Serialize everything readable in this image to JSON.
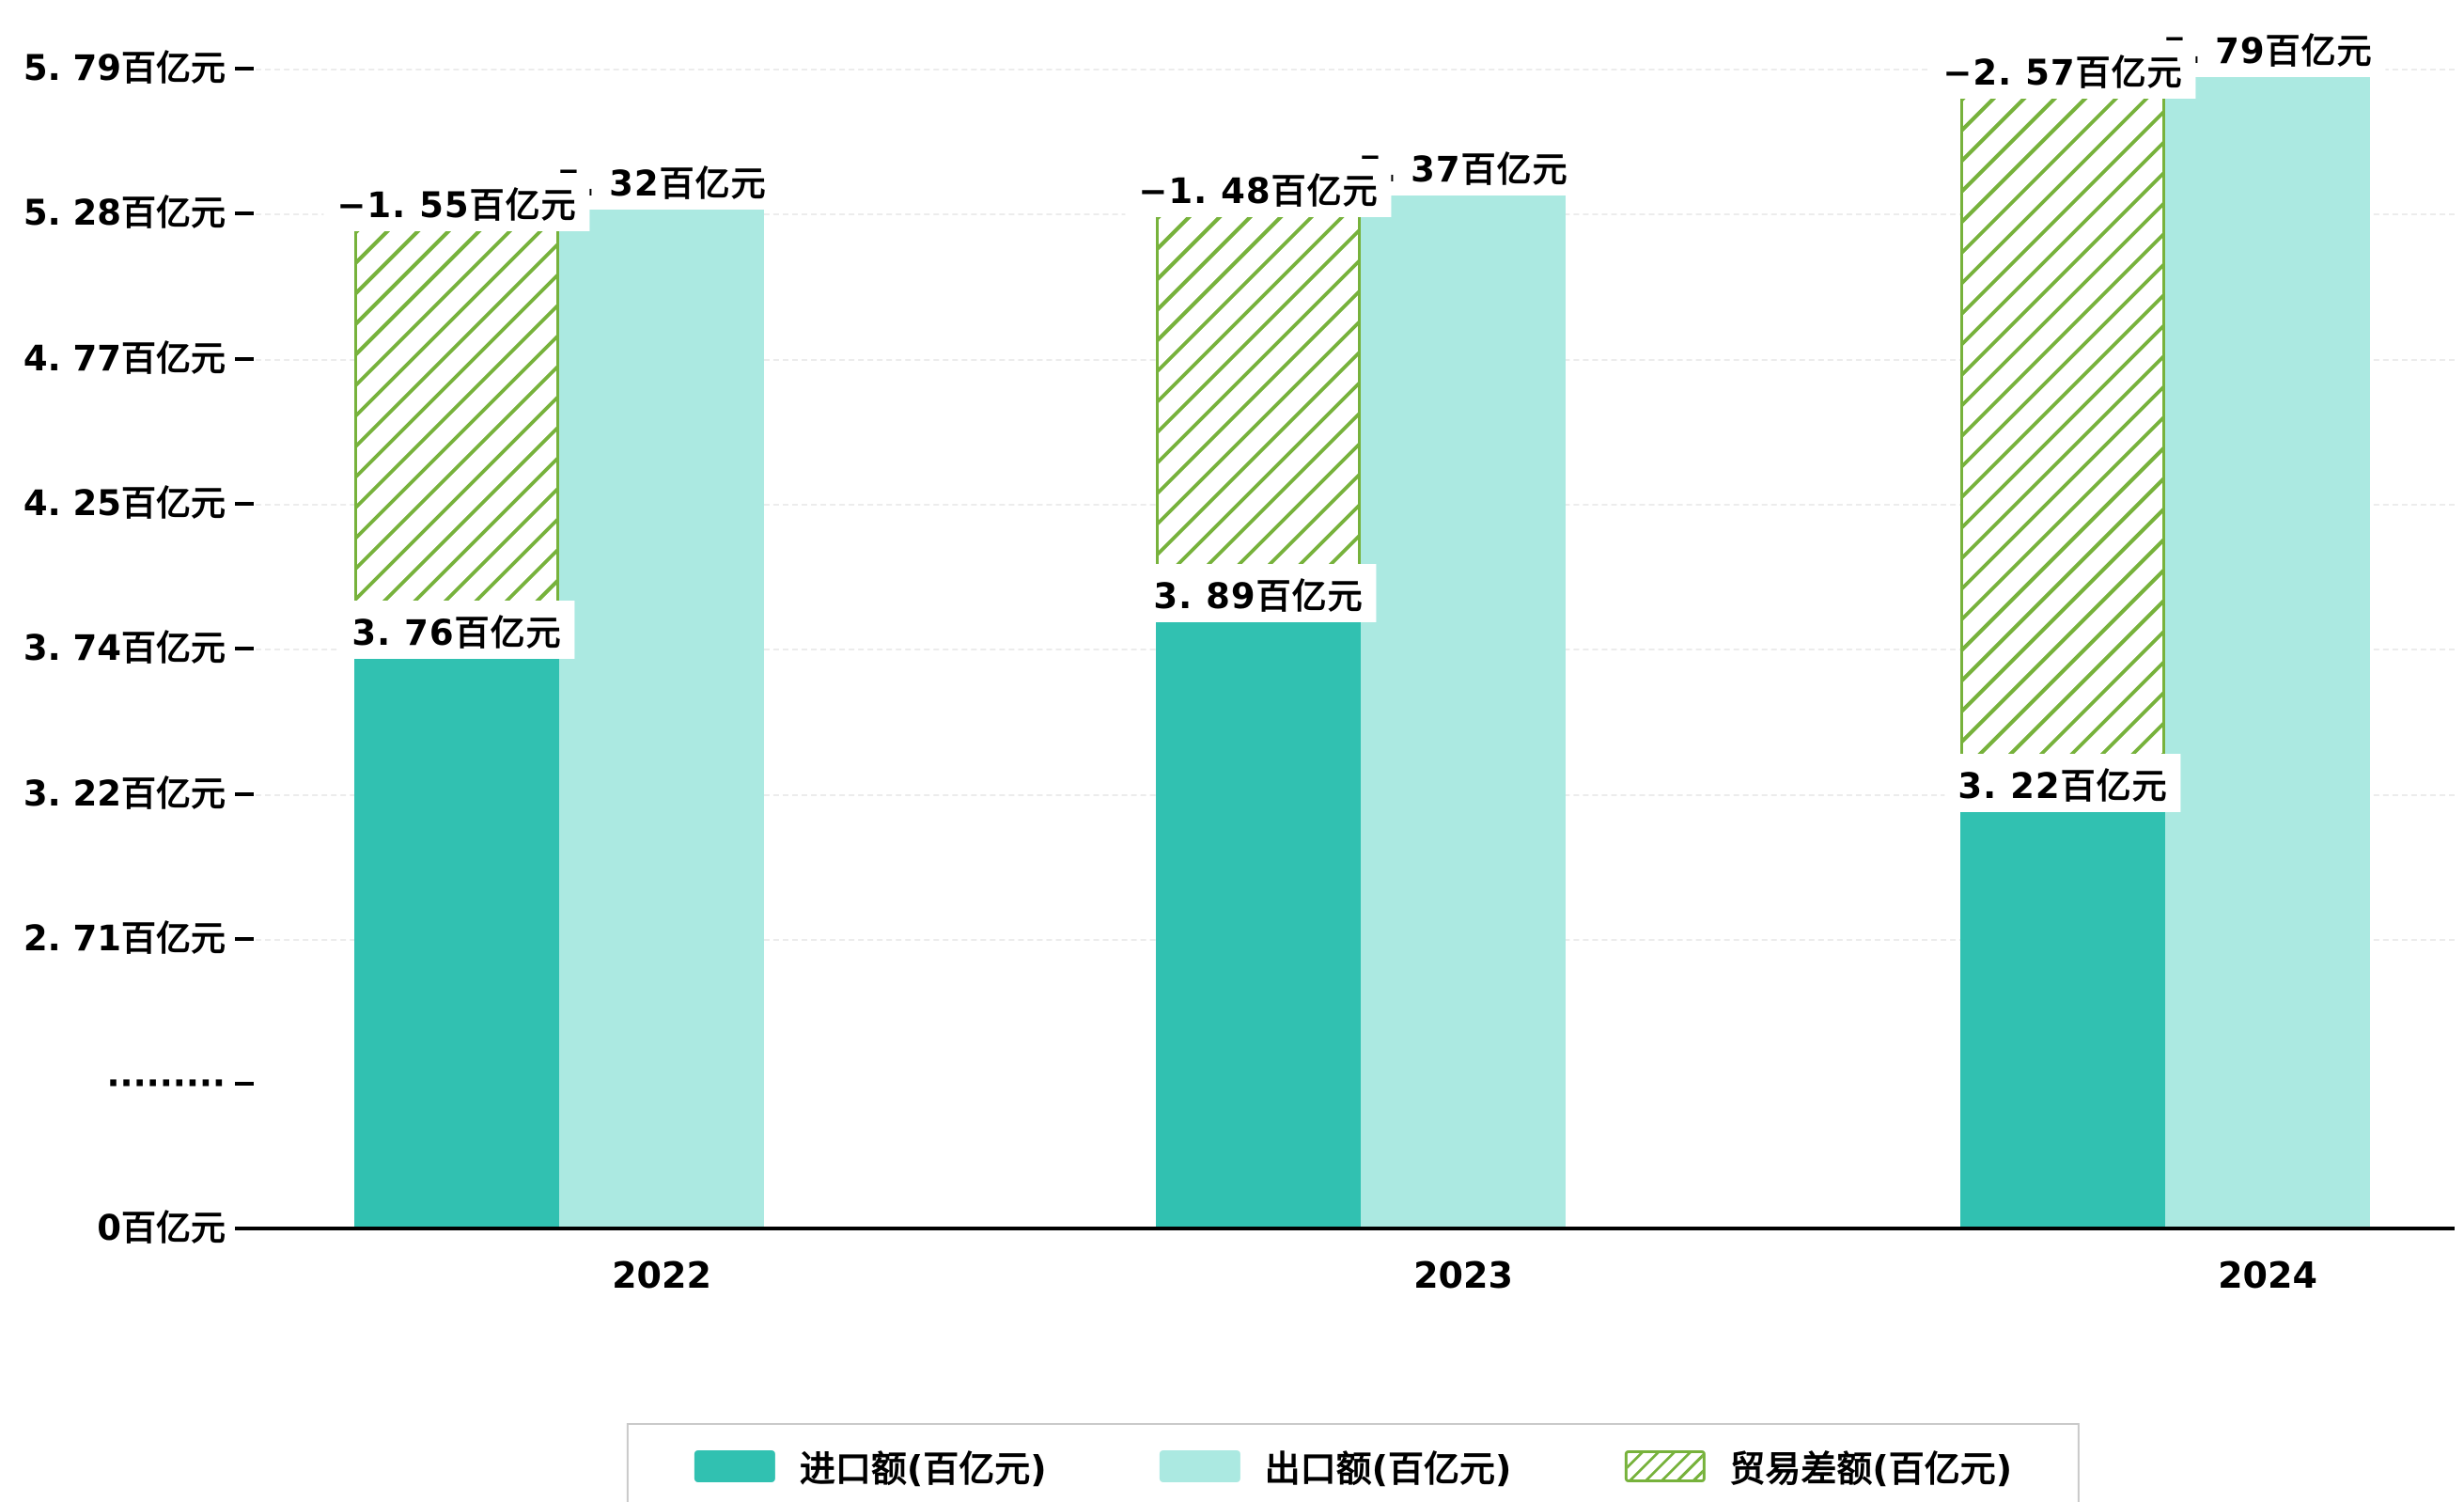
{
  "chart_data": {
    "type": "bar",
    "title": "",
    "unit": "百亿元",
    "categories": [
      "2022",
      "2023",
      "2024"
    ],
    "series": [
      {
        "name": "进口额(百亿元)",
        "values": [
          3.76,
          3.89,
          3.22
        ],
        "bar_labels": [
          "3. 76百亿元",
          "3. 89百亿元",
          "3. 22百亿元"
        ],
        "color": "#31c1b1"
      },
      {
        "name": "出口额(百亿元)",
        "values": [
          5.32,
          5.37,
          5.79
        ],
        "bar_labels": [
          "5. 32百亿元",
          "5. 37百亿元",
          "5. 79百亿元"
        ],
        "color": "#abe9e1"
      },
      {
        "name": "贸易差额(百亿元)",
        "values": [
          -1.55,
          -1.48,
          -2.57
        ],
        "bar_labels": [
          "−1. 55百亿元",
          "−1. 48百亿元",
          "−2. 57百亿元"
        ],
        "color": "#77b23c",
        "pattern": "diagonal-hatch"
      }
    ],
    "y_axis": {
      "unit": "百亿元",
      "axis_break": true,
      "ticks": [
        {
          "label": "5. 79百亿元",
          "value": 5.79
        },
        {
          "label": "5. 28百亿元",
          "value": 5.28
        },
        {
          "label": "4. 77百亿元",
          "value": 4.77
        },
        {
          "label": "4. 25百亿元",
          "value": 4.25
        },
        {
          "label": "3. 74百亿元",
          "value": 3.74
        },
        {
          "label": "3. 22百亿元",
          "value": 3.22
        },
        {
          "label": "2. 71百亿元",
          "value": 2.71
        },
        {
          "label": "·········",
          "value": null
        },
        {
          "label": "0百亿元",
          "value": 0
        }
      ]
    },
    "x_axis": {
      "tick_labels": [
        "2022",
        "2023",
        "2024"
      ]
    },
    "legend": {
      "position": "bottom",
      "entries": [
        {
          "label": "进口额(百亿元)",
          "swatch": "solid-teal"
        },
        {
          "label": "出口额(百亿元)",
          "swatch": "solid-light-teal"
        },
        {
          "label": "贸易差额(百亿元)",
          "swatch": "green-diagonal-hatch"
        }
      ]
    },
    "grid": "horizontal-dashed",
    "colors": {
      "import": "#31c1b1",
      "export": "#abe9e1",
      "balance": "#77b23c",
      "grid": "#ececec",
      "axis": "#000000",
      "background": "#ffffff"
    }
  }
}
